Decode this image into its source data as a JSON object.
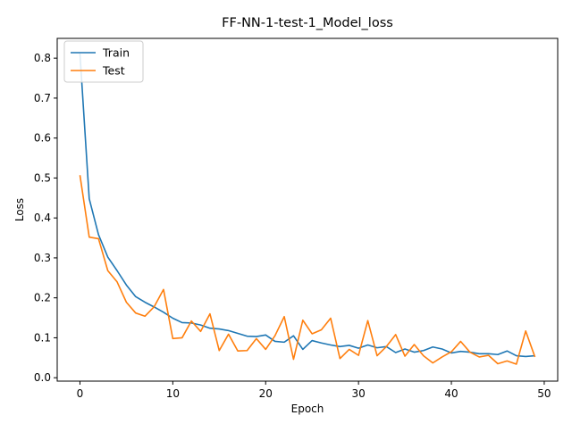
{
  "chart_data": {
    "type": "line",
    "title": "FF-NN-1-test-1_Model_loss",
    "xlabel": "Epoch",
    "ylabel": "Loss",
    "xlim": [
      -2.45,
      51.45
    ],
    "ylim": [
      -0.0085,
      0.8495
    ],
    "x_ticks": [
      0,
      10,
      20,
      30,
      40,
      50
    ],
    "x_tick_labels": [
      "0",
      "10",
      "20",
      "30",
      "40",
      "50"
    ],
    "y_ticks": [
      0.0,
      0.1,
      0.2,
      0.3,
      0.4,
      0.5,
      0.6,
      0.7,
      0.8
    ],
    "y_tick_labels": [
      "0.0",
      "0.1",
      "0.2",
      "0.3",
      "0.4",
      "0.5",
      "0.6",
      "0.7",
      "0.8"
    ],
    "legend_position": "top-left",
    "grid": false,
    "x": [
      0,
      1,
      2,
      3,
      4,
      5,
      6,
      7,
      8,
      9,
      10,
      11,
      12,
      13,
      14,
      15,
      16,
      17,
      18,
      19,
      20,
      21,
      22,
      23,
      24,
      25,
      26,
      27,
      28,
      29,
      30,
      31,
      32,
      33,
      34,
      35,
      36,
      37,
      38,
      39,
      40,
      41,
      42,
      43,
      44,
      45,
      46,
      47,
      48,
      49
    ],
    "series": [
      {
        "name": "Train",
        "color": "#1f77b4",
        "values": [
          0.812,
          0.448,
          0.358,
          0.302,
          0.268,
          0.232,
          0.203,
          0.189,
          0.177,
          0.164,
          0.149,
          0.138,
          0.137,
          0.132,
          0.124,
          0.122,
          0.118,
          0.111,
          0.104,
          0.103,
          0.107,
          0.091,
          0.089,
          0.105,
          0.071,
          0.093,
          0.087,
          0.082,
          0.078,
          0.081,
          0.074,
          0.082,
          0.075,
          0.078,
          0.063,
          0.072,
          0.064,
          0.068,
          0.077,
          0.072,
          0.062,
          0.066,
          0.064,
          0.06,
          0.06,
          0.058,
          0.067,
          0.055,
          0.053,
          0.055
        ]
      },
      {
        "name": "Test",
        "color": "#ff7f0e",
        "values": [
          0.507,
          0.352,
          0.348,
          0.268,
          0.24,
          0.189,
          0.162,
          0.154,
          0.178,
          0.221,
          0.098,
          0.1,
          0.142,
          0.116,
          0.16,
          0.068,
          0.109,
          0.067,
          0.068,
          0.098,
          0.071,
          0.105,
          0.153,
          0.046,
          0.144,
          0.11,
          0.12,
          0.149,
          0.048,
          0.071,
          0.056,
          0.143,
          0.055,
          0.078,
          0.108,
          0.054,
          0.083,
          0.055,
          0.037,
          0.052,
          0.065,
          0.091,
          0.064,
          0.052,
          0.056,
          0.035,
          0.042,
          0.034,
          0.117,
          0.052
        ]
      }
    ]
  }
}
